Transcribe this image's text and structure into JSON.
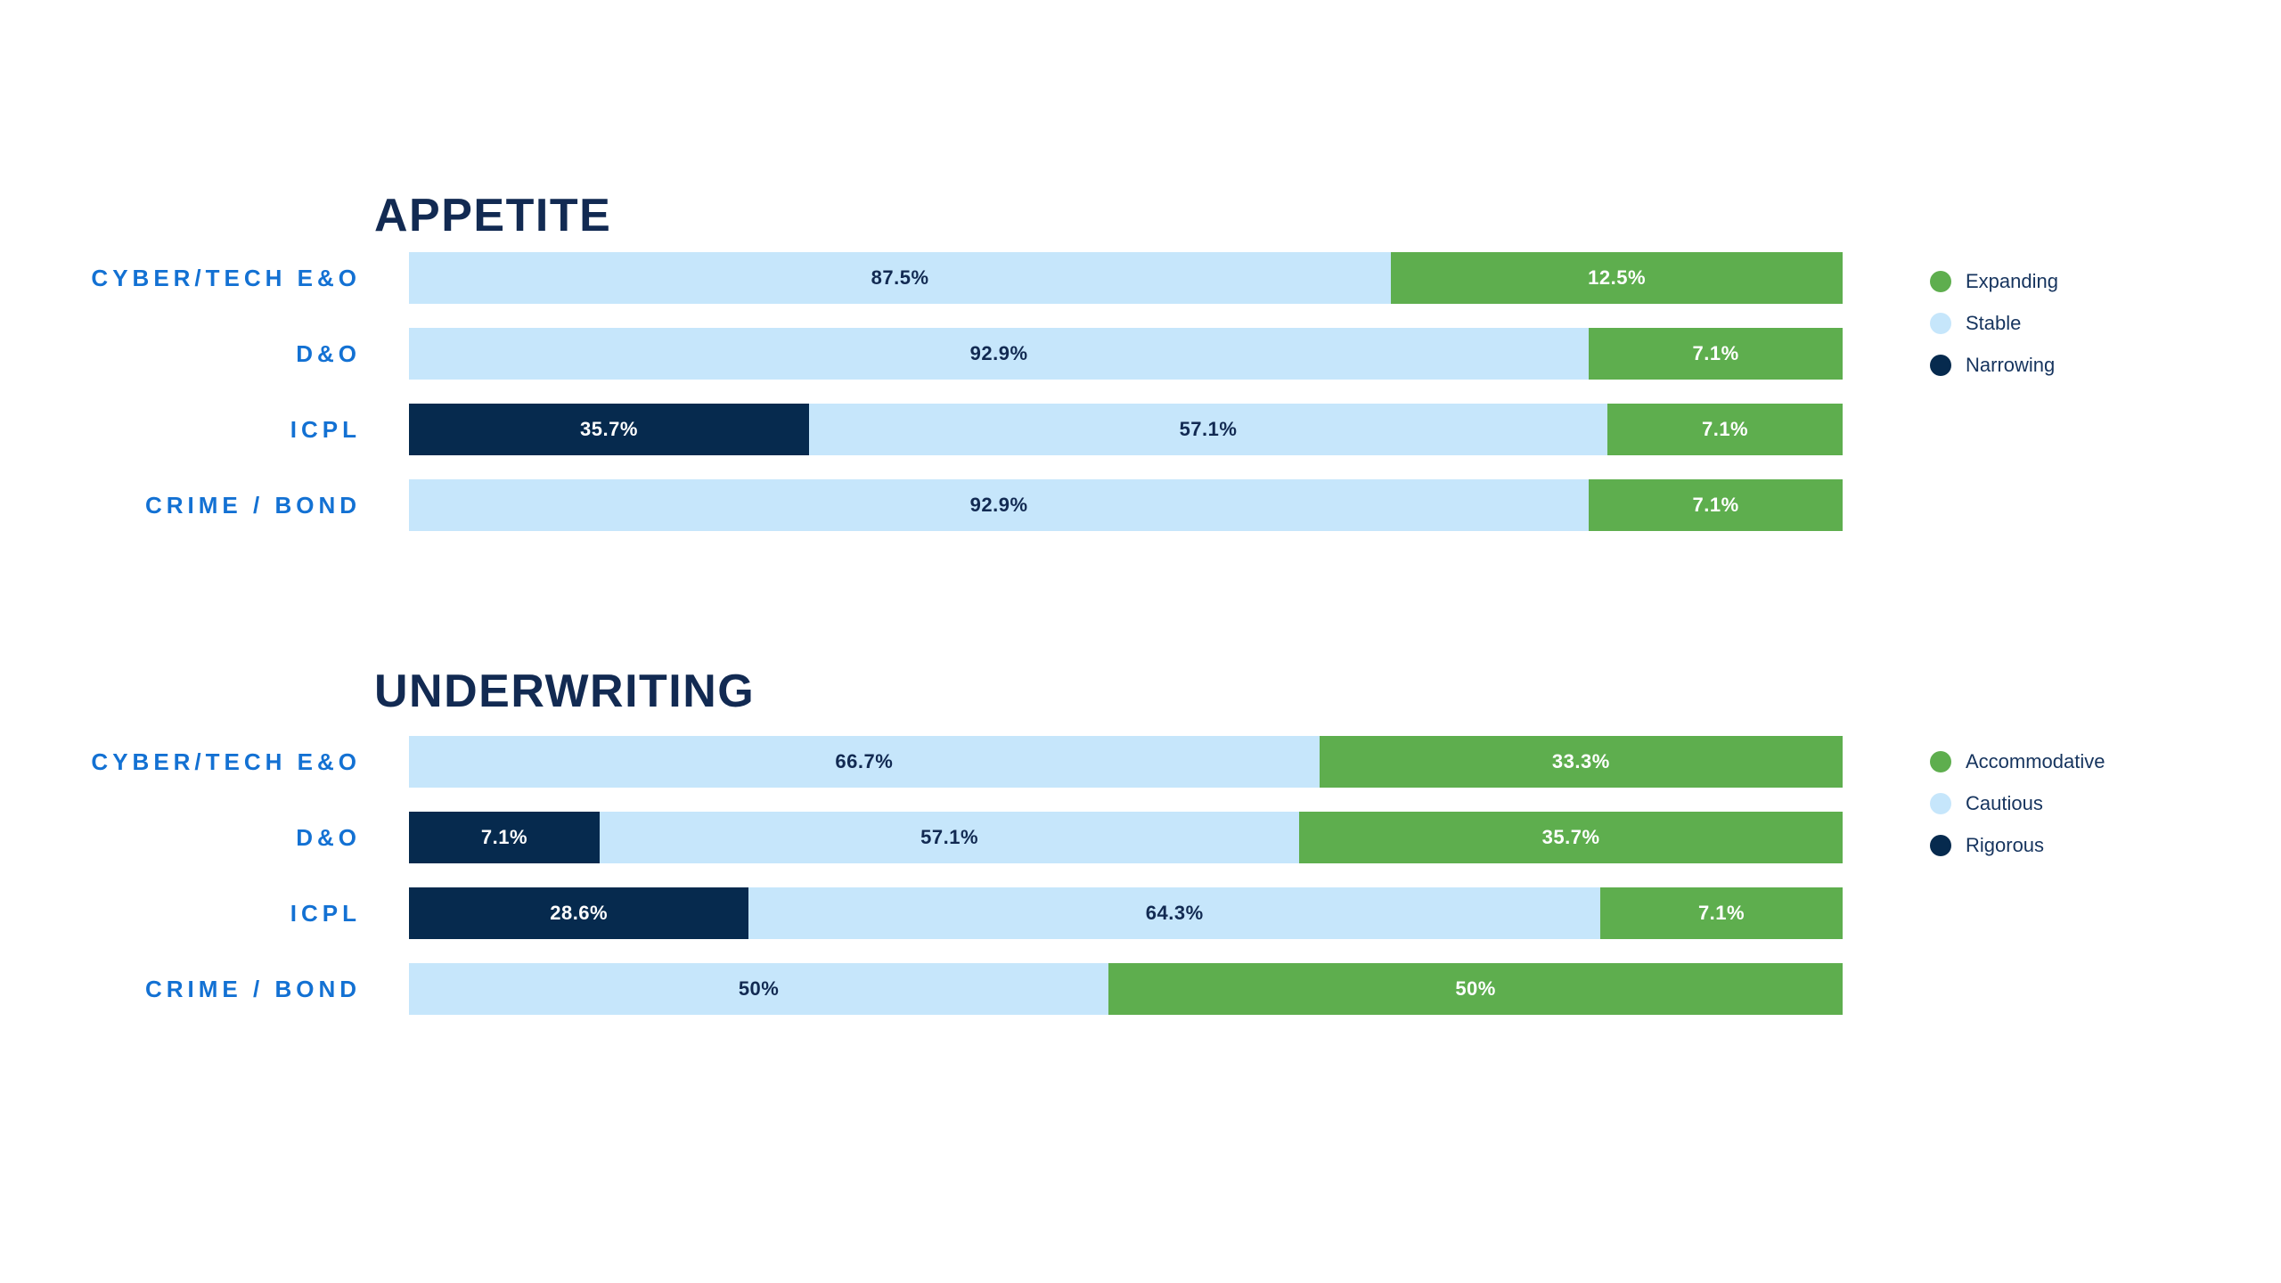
{
  "page": {
    "background": "#FFFFFF"
  },
  "colors": {
    "title_text": "#122A52",
    "category_text": "#1371D3",
    "legend_text": "#16345E",
    "series_green": "#5EAE4E",
    "series_light_blue": "#C6E6FB",
    "series_navy": "#062A4E",
    "label_on_light_blue": "#122A52",
    "label_on_green": "#FFFFFF",
    "label_on_navy": "#FFFFFF"
  },
  "chart_data": [
    {
      "type": "bar",
      "orientation": "horizontal-stacked",
      "title": "APPETITE",
      "grid": false,
      "axes_visible": false,
      "x_axis": {
        "min": 0,
        "max": 100,
        "unit": "%"
      },
      "legend_position": "right",
      "legend": [
        {
          "label": "Expanding",
          "fill": "#5EAE4E",
          "segment_label_color": "#FFFFFF"
        },
        {
          "label": "Stable",
          "fill": "#C6E6FB",
          "segment_label_color": "#122A52"
        },
        {
          "label": "Narrowing",
          "fill": "#062A4E",
          "segment_label_color": "#FFFFFF"
        }
      ],
      "categories": [
        "CYBER/TECH E&O",
        "D&O",
        "ICPL",
        "CRIME / BOND"
      ],
      "rows": [
        {
          "category": "CYBER/TECH E&O",
          "segments": [
            {
              "series": "Stable",
              "value": 87.5,
              "label": "87.5%",
              "width_pct": 68.5
            },
            {
              "series": "Expanding",
              "value": 12.5,
              "label": "12.5%",
              "width_pct": 31.5
            }
          ]
        },
        {
          "category": "D&O",
          "segments": [
            {
              "series": "Stable",
              "value": 92.9,
              "label": "92.9%",
              "width_pct": 82.3
            },
            {
              "series": "Expanding",
              "value": 7.1,
              "label": "7.1%",
              "width_pct": 17.7
            }
          ]
        },
        {
          "category": "ICPL",
          "segments": [
            {
              "series": "Narrowing",
              "value": 35.7,
              "label": "35.7%",
              "width_pct": 27.9
            },
            {
              "series": "Stable",
              "value": 57.1,
              "label": "57.1%",
              "width_pct": 55.7
            },
            {
              "series": "Expanding",
              "value": 7.1,
              "label": "7.1%",
              "width_pct": 16.4
            }
          ]
        },
        {
          "category": "CRIME / BOND",
          "segments": [
            {
              "series": "Stable",
              "value": 92.9,
              "label": "92.9%",
              "width_pct": 82.3
            },
            {
              "series": "Expanding",
              "value": 7.1,
              "label": "7.1%",
              "width_pct": 17.7
            }
          ]
        }
      ]
    },
    {
      "type": "bar",
      "orientation": "horizontal-stacked",
      "title": "UNDERWRITING",
      "grid": false,
      "axes_visible": false,
      "x_axis": {
        "min": 0,
        "max": 100,
        "unit": "%"
      },
      "legend_position": "right",
      "legend": [
        {
          "label": "Accommodative",
          "fill": "#5EAE4E",
          "segment_label_color": "#FFFFFF"
        },
        {
          "label": "Cautious",
          "fill": "#C6E6FB",
          "segment_label_color": "#122A52"
        },
        {
          "label": "Rigorous",
          "fill": "#062A4E",
          "segment_label_color": "#FFFFFF"
        }
      ],
      "categories": [
        "CYBER/TECH E&O",
        "D&O",
        "ICPL",
        "CRIME / BOND"
      ],
      "rows": [
        {
          "category": "CYBER/TECH E&O",
          "segments": [
            {
              "series": "Cautious",
              "value": 66.7,
              "label": "66.7%",
              "width_pct": 63.5
            },
            {
              "series": "Accommodative",
              "value": 33.3,
              "label": "33.3%",
              "width_pct": 36.5
            }
          ]
        },
        {
          "category": "D&O",
          "segments": [
            {
              "series": "Rigorous",
              "value": 7.1,
              "label": "7.1%",
              "width_pct": 13.3
            },
            {
              "series": "Cautious",
              "value": 57.1,
              "label": "57.1%",
              "width_pct": 48.8
            },
            {
              "series": "Accommodative",
              "value": 35.7,
              "label": "35.7%",
              "width_pct": 37.9
            }
          ]
        },
        {
          "category": "ICPL",
          "segments": [
            {
              "series": "Rigorous",
              "value": 28.6,
              "label": "28.6%",
              "width_pct": 23.7
            },
            {
              "series": "Cautious",
              "value": 64.3,
              "label": "64.3%",
              "width_pct": 59.4
            },
            {
              "series": "Accommodative",
              "value": 7.1,
              "label": "7.1%",
              "width_pct": 16.9
            }
          ]
        },
        {
          "category": "CRIME / BOND",
          "segments": [
            {
              "series": "Cautious",
              "value": 50,
              "label": "50%",
              "width_pct": 48.8
            },
            {
              "series": "Accommodative",
              "value": 50,
              "label": "50%",
              "width_pct": 51.2
            }
          ]
        }
      ]
    }
  ]
}
